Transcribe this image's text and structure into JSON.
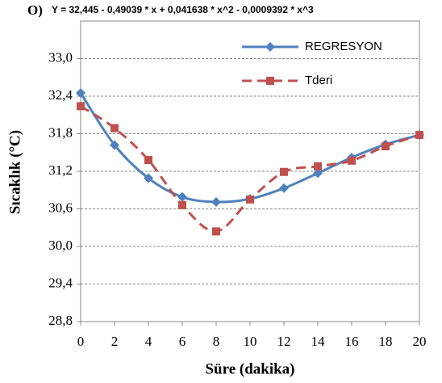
{
  "chart_data": {
    "type": "line",
    "panel_label": "O)",
    "title": "Y = 32,445 - 0,49039 * x + 0,041638 * x^2 - 0,0009392 * x^3",
    "x_label": "Süre (dakika)",
    "y_label": "Sıcaklık (°C)",
    "x": [
      0,
      2,
      4,
      6,
      8,
      10,
      12,
      14,
      16,
      18,
      20
    ],
    "xlim": [
      0,
      20
    ],
    "xticks": [
      0,
      2,
      4,
      6,
      8,
      10,
      12,
      14,
      16,
      18,
      20
    ],
    "ylim": [
      28.8,
      33.6
    ],
    "yticks": [
      {
        "value": 28.8,
        "label": "28,8"
      },
      {
        "value": 29.4,
        "label": "29,4"
      },
      {
        "value": 30.0,
        "label": "30,0"
      },
      {
        "value": 30.6,
        "label": "30,6"
      },
      {
        "value": 31.2,
        "label": "31,2"
      },
      {
        "value": 31.8,
        "label": "31,8"
      },
      {
        "value": 32.4,
        "label": "32,4"
      },
      {
        "value": 33.0,
        "label": "33,0"
      }
    ],
    "grid": true,
    "legend": "top-right",
    "series": [
      {
        "name": "REGRESYON",
        "color": "#4f81bd",
        "line_style": "solid",
        "smooth": true,
        "marker": "diamond",
        "values": [
          32.45,
          31.62,
          31.09,
          30.79,
          30.71,
          30.76,
          30.93,
          31.17,
          31.42,
          31.63,
          31.78
        ]
      },
      {
        "name": "Tderi",
        "color": "#c0504d",
        "line_style": "dashed",
        "smooth": true,
        "marker": "square",
        "values": [
          32.24,
          31.89,
          31.38,
          30.66,
          30.24,
          30.75,
          31.19,
          31.28,
          31.37,
          31.6,
          31.78
        ]
      }
    ]
  }
}
